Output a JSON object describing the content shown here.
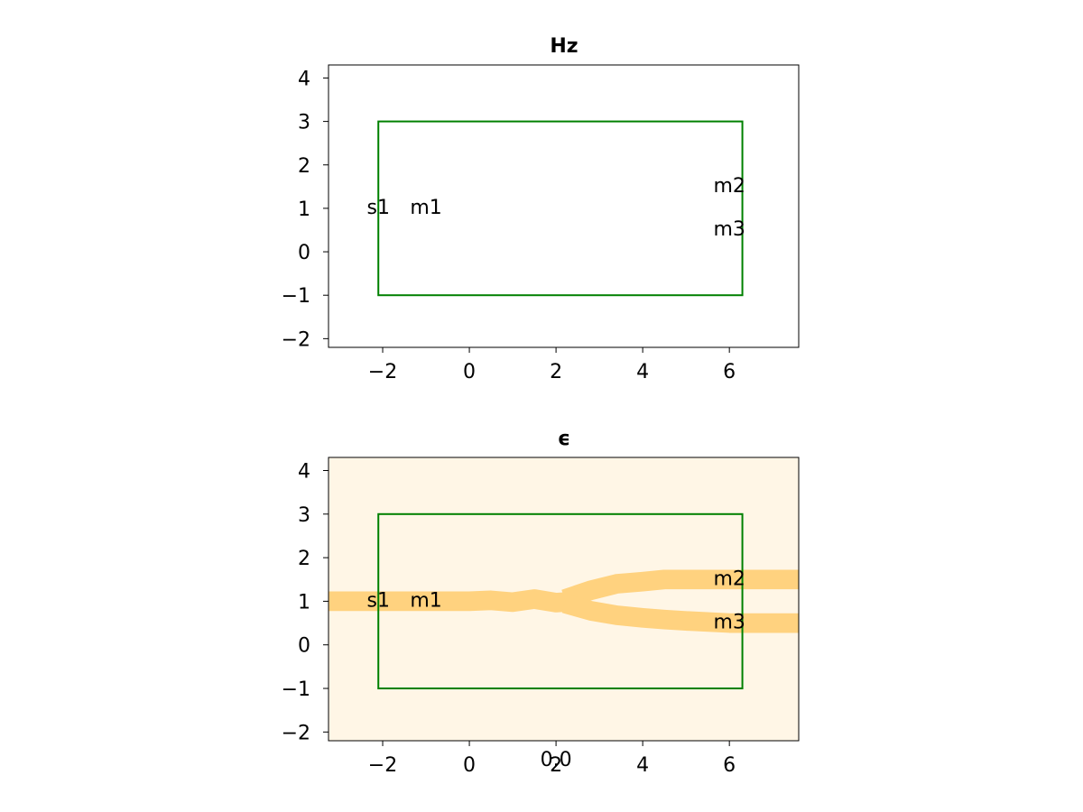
{
  "chart_data": [
    {
      "type": "heatmap",
      "title": "Hz",
      "xlim": [
        -3.25,
        7.6
      ],
      "ylim": [
        -2.2,
        4.3
      ],
      "xticks": [
        -2,
        0,
        2,
        4,
        6
      ],
      "yticks": [
        -2,
        -1,
        0,
        1,
        2,
        3,
        4
      ],
      "background": "#ffffff",
      "design_box": {
        "x": [
          -2.1,
          6.3
        ],
        "y": [
          -1,
          3
        ],
        "color": "#008000"
      },
      "labels": [
        {
          "text": "s1",
          "x": -2.1,
          "y": 1.0
        },
        {
          "text": "m1",
          "x": -1.0,
          "y": 1.0
        },
        {
          "text": "m2",
          "x": 6.0,
          "y": 1.5
        },
        {
          "text": "m3",
          "x": 6.0,
          "y": 0.5
        }
      ]
    },
    {
      "type": "heatmap",
      "title": "ϵ",
      "xlim": [
        -3.25,
        7.6
      ],
      "ylim": [
        -2.2,
        4.3
      ],
      "xticks": [
        -2,
        0,
        2,
        4,
        6
      ],
      "yticks": [
        -2,
        -1,
        0,
        1,
        2,
        3,
        4
      ],
      "background": "#fff6e6",
      "material_color": "#ffd27f",
      "waveguide_width": 0.45,
      "waveguides": [
        {
          "x": [
            -3.25,
            -1,
            0,
            0.5,
            1.0,
            1.5,
            2.0,
            2.5
          ],
          "y": [
            1.0,
            1.0,
            1.0,
            1.02,
            0.98,
            1.05,
            0.97,
            1.0
          ]
        },
        {
          "x": [
            2.2,
            2.8,
            3.4,
            4.0,
            4.5,
            5.0,
            6.0,
            7.6
          ],
          "y": [
            1.05,
            1.25,
            1.4,
            1.45,
            1.5,
            1.5,
            1.5,
            1.5
          ]
        },
        {
          "x": [
            2.2,
            2.8,
            3.4,
            4.0,
            4.5,
            5.0,
            6.0,
            7.6
          ],
          "y": [
            0.95,
            0.78,
            0.68,
            0.62,
            0.58,
            0.55,
            0.5,
            0.5
          ]
        }
      ],
      "design_box": {
        "x": [
          -2.1,
          6.3
        ],
        "y": [
          -1,
          3
        ],
        "color": "#008000"
      },
      "labels": [
        {
          "text": "s1",
          "x": -2.1,
          "y": 1.0
        },
        {
          "text": "m1",
          "x": -1.0,
          "y": 1.0
        },
        {
          "text": "m2",
          "x": 6.0,
          "y": 1.5
        },
        {
          "text": "m3",
          "x": 6.0,
          "y": 0.5
        }
      ],
      "annotation": {
        "text": "0.0",
        "x": 2.0,
        "y": -2.6
      }
    }
  ]
}
